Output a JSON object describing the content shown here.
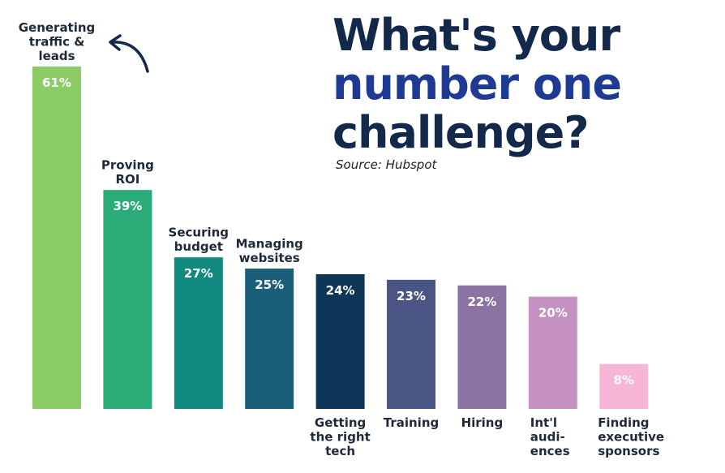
{
  "title": {
    "line1": "What's your",
    "line2": "number one",
    "line3": "challenge?"
  },
  "source": "Source: Hubspot",
  "colors": {
    "title_dark": "#13294b",
    "title_blue": "#1f3a93",
    "label_text": "#1e2a3a",
    "arrow": "#13294b"
  },
  "chart_data": {
    "type": "bar",
    "title": "What's your number one challenge?",
    "categories": [
      "Generating traffic & leads",
      "Proving ROI",
      "Securing budget",
      "Managing websites",
      "Getting the right tech",
      "Training",
      "Hiring",
      "Int'l audi-ences",
      "Finding executive sponsors"
    ],
    "category_lines": [
      [
        "Generating",
        "traffic &",
        "leads"
      ],
      [
        "Proving",
        "ROI"
      ],
      [
        "Securing",
        "budget"
      ],
      [
        "Managing",
        "websites"
      ],
      [
        "Getting",
        "the right",
        "tech"
      ],
      [
        "Training"
      ],
      [
        "Hiring"
      ],
      [
        "Int'l",
        "audi-",
        "ences"
      ],
      [
        "Finding",
        "executive",
        "sponsors"
      ]
    ],
    "label_position": [
      "above",
      "above",
      "above",
      "above",
      "below",
      "below",
      "below",
      "below",
      "below"
    ],
    "values": [
      61,
      39,
      27,
      25,
      24,
      23,
      22,
      20,
      8
    ],
    "data_labels": [
      "61%",
      "39%",
      "27%",
      "25%",
      "24%",
      "23%",
      "22%",
      "20%",
      "8%"
    ],
    "bar_colors": [
      "#8ccc66",
      "#2bab77",
      "#12897f",
      "#1a5f7a",
      "#0f3558",
      "#4b5585",
      "#8b74a4",
      "#c491c0",
      "#f7b6d6"
    ],
    "ylim": [
      0,
      61
    ],
    "grid": false,
    "legend": "none",
    "xlabel": "",
    "ylabel": ""
  }
}
